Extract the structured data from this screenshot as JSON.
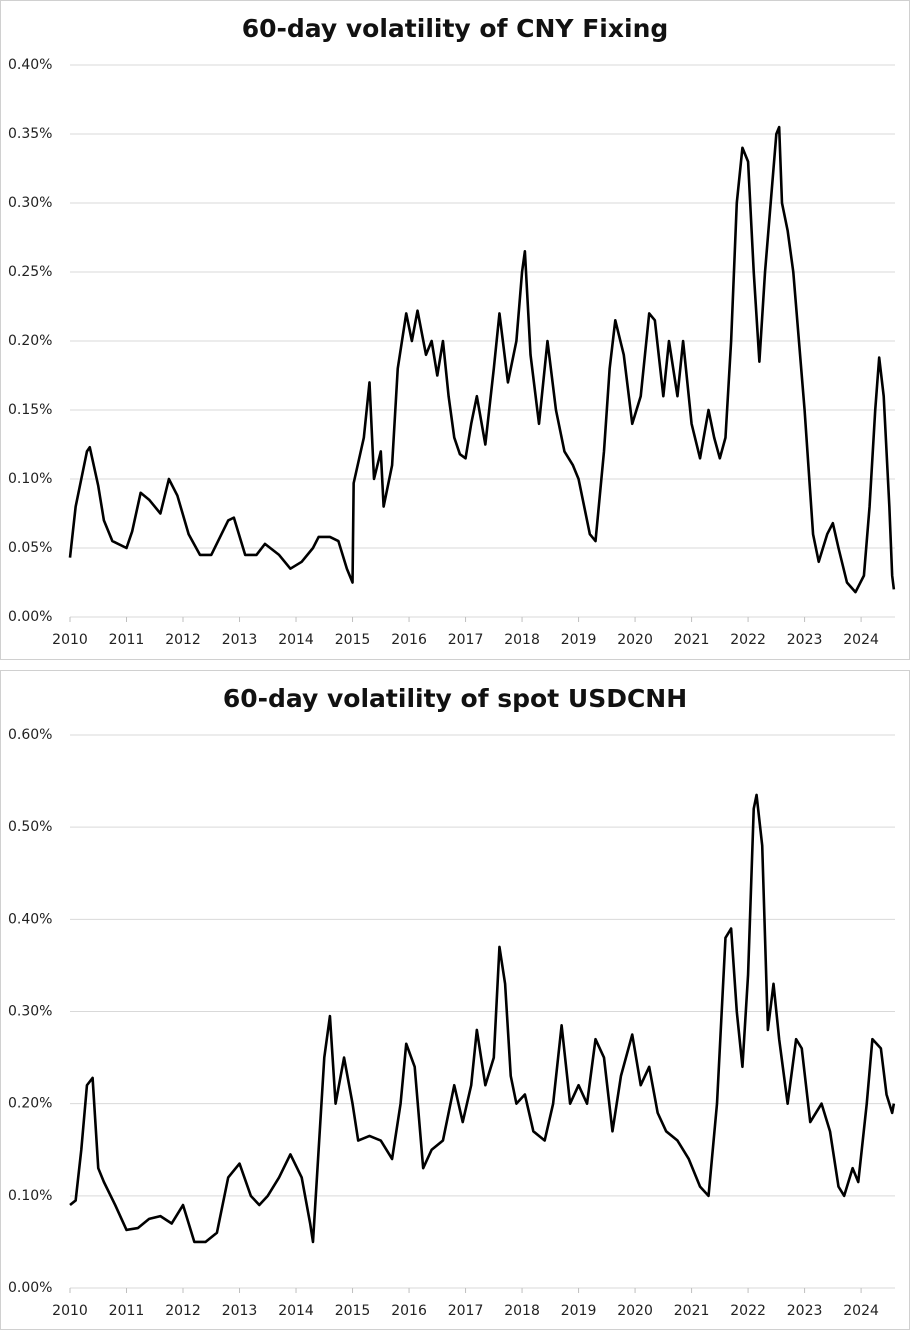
{
  "chart_data": [
    {
      "type": "line",
      "title": "60-day volatility of CNY Fixing",
      "color": "#000000",
      "x": [
        2010.0,
        2010.1,
        2010.3,
        2010.35,
        2010.5,
        2010.6,
        2010.75,
        2011.0,
        2011.1,
        2011.25,
        2011.4,
        2011.6,
        2011.75,
        2011.9,
        2012.1,
        2012.3,
        2012.5,
        2012.8,
        2012.9,
        2013.1,
        2013.3,
        2013.45,
        2013.7,
        2013.9,
        2014.1,
        2014.3,
        2014.4,
        2014.6,
        2014.75,
        2014.9,
        2015.0,
        2015.02,
        2015.2,
        2015.3,
        2015.38,
        2015.5,
        2015.55,
        2015.7,
        2015.8,
        2015.95,
        2016.05,
        2016.15,
        2016.3,
        2016.4,
        2016.5,
        2016.6,
        2016.7,
        2016.8,
        2016.9,
        2017.0,
        2017.1,
        2017.2,
        2017.35,
        2017.5,
        2017.6,
        2017.75,
        2017.9,
        2018.0,
        2018.05,
        2018.15,
        2018.3,
        2018.45,
        2018.6,
        2018.75,
        2018.9,
        2019.0,
        2019.2,
        2019.3,
        2019.45,
        2019.55,
        2019.65,
        2019.8,
        2019.95,
        2020.1,
        2020.25,
        2020.35,
        2020.5,
        2020.6,
        2020.75,
        2020.85,
        2021.0,
        2021.15,
        2021.3,
        2021.4,
        2021.5,
        2021.6,
        2021.7,
        2021.8,
        2021.9,
        2022.0,
        2022.1,
        2022.2,
        2022.3,
        2022.4,
        2022.5,
        2022.55,
        2022.6,
        2022.7,
        2022.8,
        2022.9,
        2023.0,
        2023.15,
        2023.25,
        2023.4,
        2023.5,
        2023.6,
        2023.75,
        2023.9,
        2024.05,
        2024.15,
        2024.25,
        2024.32,
        2024.4,
        2024.5,
        2024.55,
        2024.58
      ],
      "values": [
        0.043,
        0.08,
        0.12,
        0.123,
        0.095,
        0.07,
        0.055,
        0.05,
        0.062,
        0.09,
        0.085,
        0.075,
        0.1,
        0.088,
        0.06,
        0.045,
        0.045,
        0.07,
        0.072,
        0.045,
        0.045,
        0.053,
        0.045,
        0.035,
        0.04,
        0.05,
        0.058,
        0.058,
        0.055,
        0.035,
        0.025,
        0.097,
        0.13,
        0.17,
        0.1,
        0.12,
        0.08,
        0.11,
        0.18,
        0.22,
        0.2,
        0.222,
        0.19,
        0.2,
        0.175,
        0.2,
        0.16,
        0.13,
        0.118,
        0.115,
        0.14,
        0.16,
        0.125,
        0.18,
        0.22,
        0.17,
        0.2,
        0.25,
        0.265,
        0.19,
        0.14,
        0.2,
        0.15,
        0.12,
        0.11,
        0.1,
        0.06,
        0.055,
        0.12,
        0.18,
        0.215,
        0.19,
        0.14,
        0.16,
        0.22,
        0.215,
        0.16,
        0.2,
        0.16,
        0.2,
        0.14,
        0.115,
        0.15,
        0.13,
        0.115,
        0.13,
        0.2,
        0.3,
        0.34,
        0.33,
        0.25,
        0.185,
        0.25,
        0.3,
        0.35,
        0.355,
        0.3,
        0.28,
        0.25,
        0.2,
        0.15,
        0.06,
        0.04,
        0.06,
        0.068,
        0.05,
        0.025,
        0.018,
        0.03,
        0.08,
        0.15,
        0.188,
        0.16,
        0.08,
        0.03,
        0.02
      ],
      "xlim": [
        2010,
        2024.6
      ],
      "xticks": [
        2010,
        2011,
        2012,
        2013,
        2014,
        2015,
        2016,
        2017,
        2018,
        2019,
        2020,
        2021,
        2022,
        2023,
        2024
      ],
      "ylim": [
        0,
        0.4
      ],
      "yticks": [
        {
          "value": 0,
          "label": "0.00%"
        },
        {
          "value": 0.05,
          "label": "0.05%"
        },
        {
          "value": 0.1,
          "label": "0.10%"
        },
        {
          "value": 0.15,
          "label": "0.15%"
        },
        {
          "value": 0.2,
          "label": "0.20%"
        },
        {
          "value": 0.25,
          "label": "0.25%"
        },
        {
          "value": 0.3,
          "label": "0.30%"
        },
        {
          "value": 0.35,
          "label": "0.35%"
        },
        {
          "value": 0.4,
          "label": "0.40%"
        }
      ],
      "grid": true
    },
    {
      "type": "line",
      "title": "60-day volatility of spot USDCNH",
      "color": "#000000",
      "x": [
        2010.0,
        2010.1,
        2010.2,
        2010.3,
        2010.4,
        2010.5,
        2010.6,
        2010.8,
        2011.0,
        2011.2,
        2011.4,
        2011.6,
        2011.8,
        2012.0,
        2012.2,
        2012.4,
        2012.6,
        2012.8,
        2013.0,
        2013.2,
        2013.35,
        2013.5,
        2013.7,
        2013.9,
        2014.1,
        2014.25,
        2014.3,
        2014.4,
        2014.5,
        2014.6,
        2014.7,
        2014.85,
        2015.0,
        2015.1,
        2015.3,
        2015.5,
        2015.7,
        2015.85,
        2015.95,
        2016.1,
        2016.25,
        2016.4,
        2016.6,
        2016.8,
        2016.95,
        2017.1,
        2017.2,
        2017.35,
        2017.5,
        2017.6,
        2017.7,
        2017.8,
        2017.9,
        2018.05,
        2018.2,
        2018.4,
        2018.55,
        2018.7,
        2018.85,
        2019.0,
        2019.15,
        2019.3,
        2019.45,
        2019.6,
        2019.75,
        2019.95,
        2020.1,
        2020.25,
        2020.4,
        2020.55,
        2020.75,
        2020.95,
        2021.15,
        2021.3,
        2021.45,
        2021.6,
        2021.7,
        2021.8,
        2021.9,
        2022.0,
        2022.1,
        2022.15,
        2022.25,
        2022.35,
        2022.45,
        2022.55,
        2022.7,
        2022.85,
        2022.95,
        2023.1,
        2023.3,
        2023.45,
        2023.6,
        2023.7,
        2023.85,
        2023.95,
        2024.1,
        2024.2,
        2024.35,
        2024.45,
        2024.55,
        2024.58
      ],
      "values": [
        0.09,
        0.095,
        0.15,
        0.22,
        0.228,
        0.13,
        0.115,
        0.09,
        0.063,
        0.065,
        0.075,
        0.078,
        0.07,
        0.09,
        0.05,
        0.05,
        0.06,
        0.12,
        0.135,
        0.1,
        0.09,
        0.1,
        0.12,
        0.145,
        0.12,
        0.07,
        0.05,
        0.15,
        0.25,
        0.295,
        0.2,
        0.25,
        0.2,
        0.16,
        0.165,
        0.16,
        0.14,
        0.2,
        0.265,
        0.24,
        0.13,
        0.15,
        0.16,
        0.22,
        0.18,
        0.22,
        0.28,
        0.22,
        0.25,
        0.37,
        0.33,
        0.23,
        0.2,
        0.21,
        0.17,
        0.16,
        0.2,
        0.285,
        0.2,
        0.22,
        0.2,
        0.27,
        0.25,
        0.17,
        0.23,
        0.275,
        0.22,
        0.24,
        0.19,
        0.17,
        0.16,
        0.14,
        0.11,
        0.1,
        0.2,
        0.38,
        0.39,
        0.3,
        0.24,
        0.34,
        0.52,
        0.535,
        0.48,
        0.28,
        0.33,
        0.27,
        0.2,
        0.27,
        0.26,
        0.18,
        0.2,
        0.17,
        0.11,
        0.1,
        0.13,
        0.115,
        0.2,
        0.27,
        0.26,
        0.21,
        0.19,
        0.2
      ],
      "xlim": [
        2010,
        2024.6
      ],
      "xticks": [
        2010,
        2011,
        2012,
        2013,
        2014,
        2015,
        2016,
        2017,
        2018,
        2019,
        2020,
        2021,
        2022,
        2023,
        2024
      ],
      "ylim": [
        0,
        0.6
      ],
      "yticks": [
        {
          "value": 0,
          "label": "0.00%"
        },
        {
          "value": 0.1,
          "label": "0.10%"
        },
        {
          "value": 0.2,
          "label": "0.20%"
        },
        {
          "value": 0.3,
          "label": "0.30%"
        },
        {
          "value": 0.4,
          "label": "0.40%"
        },
        {
          "value": 0.5,
          "label": "0.50%"
        },
        {
          "value": 0.6,
          "label": "0.60%"
        }
      ],
      "grid": true
    }
  ]
}
